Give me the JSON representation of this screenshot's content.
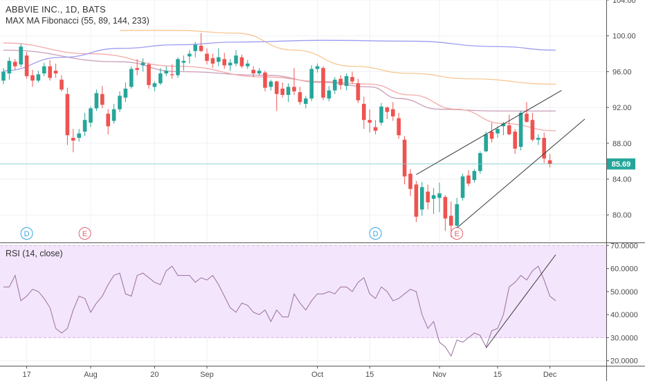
{
  "legend": {
    "symbol_line": "ABBVIE INC., 1D, BATS",
    "ma_line": "MAX MA Fibonacci (55, 89, 144, 233)",
    "rsi_line": "RSI (14, close)"
  },
  "colors": {
    "up": "#26a69a",
    "down": "#ef5350",
    "ma55": "#c99cb7",
    "ma89": "#f4a8a8",
    "ma144": "#f8c690",
    "ma233": "#9c9cf0",
    "rsi_line": "#9a6fa0",
    "rsi_band": "#f3e5fb",
    "price_tag": "#26a69a",
    "dividend": "#35a6e0",
    "earnings": "#e06272"
  },
  "chart_data": [
    {
      "type": "candlestick",
      "name": "ABBVIE INC. daily",
      "y_ticks": [
        "104.00",
        "100.00",
        "96.00",
        "92.00",
        "88.00",
        "84.00",
        "80.00"
      ],
      "ylim": [
        77,
        104
      ],
      "last_price_label": "85.69",
      "last_price": 85.69,
      "x_ticks": [
        {
          "label": "17",
          "index": 4
        },
        {
          "label": "Aug",
          "index": 15
        },
        {
          "label": "20",
          "index": 26
        },
        {
          "label": "Sep",
          "index": 35
        },
        {
          "label": "Oct",
          "index": 54
        },
        {
          "label": "15",
          "index": 63
        },
        {
          "label": "Nov",
          "index": 75
        },
        {
          "label": "15",
          "index": 85
        },
        {
          "label": "Dec",
          "index": 94
        }
      ],
      "candles": [
        [
          95.0,
          96.4,
          94.6,
          96.0
        ],
        [
          95.8,
          97.6,
          95.1,
          97.2
        ],
        [
          97.1,
          97.4,
          96.2,
          96.6
        ],
        [
          96.8,
          99.1,
          96.5,
          98.8
        ],
        [
          97.8,
          98.2,
          95.2,
          95.5
        ],
        [
          95.6,
          96.2,
          94.3,
          95.0
        ],
        [
          95.0,
          96.1,
          94.8,
          95.7
        ],
        [
          95.8,
          97.0,
          95.5,
          96.6
        ],
        [
          96.6,
          97.3,
          95.0,
          95.3
        ],
        [
          96.1,
          96.9,
          95.3,
          95.8
        ],
        [
          95.1,
          95.6,
          93.8,
          94.0
        ],
        [
          93.5,
          94.2,
          87.8,
          88.9
        ],
        [
          88.6,
          89.6,
          87.0,
          88.3
        ],
        [
          88.6,
          89.6,
          88.2,
          89.1
        ],
        [
          89.3,
          91.4,
          88.8,
          90.6
        ],
        [
          90.3,
          92.1,
          89.8,
          91.9
        ],
        [
          91.9,
          94.0,
          91.6,
          93.6
        ],
        [
          93.5,
          94.4,
          91.9,
          92.3
        ],
        [
          91.3,
          91.8,
          89.0,
          89.9
        ],
        [
          90.5,
          92.4,
          90.2,
          91.8
        ],
        [
          91.8,
          93.8,
          91.5,
          93.3
        ],
        [
          93.1,
          94.8,
          92.6,
          94.1
        ],
        [
          94.3,
          96.6,
          94.1,
          96.3
        ],
        [
          96.4,
          97.4,
          95.6,
          96.2
        ],
        [
          96.7,
          97.5,
          96.0,
          97.0
        ],
        [
          96.8,
          97.0,
          94.1,
          94.5
        ],
        [
          94.3,
          94.9,
          93.8,
          94.7
        ],
        [
          94.7,
          96.4,
          94.5,
          95.8
        ],
        [
          95.8,
          96.6,
          95.5,
          96.1
        ],
        [
          95.7,
          96.8,
          95.2,
          95.6
        ],
        [
          95.6,
          97.6,
          95.3,
          97.4
        ],
        [
          97.0,
          97.8,
          96.1,
          97.2
        ],
        [
          97.7,
          98.4,
          96.9,
          98.0
        ],
        [
          98.3,
          99.3,
          97.6,
          99.0
        ],
        [
          98.9,
          100.3,
          98.2,
          98.3
        ],
        [
          98.0,
          98.6,
          96.8,
          97.2
        ],
        [
          97.5,
          98.0,
          96.4,
          96.9
        ],
        [
          97.1,
          98.6,
          96.6,
          97.6
        ],
        [
          97.4,
          98.1,
          96.3,
          96.7
        ],
        [
          96.7,
          97.4,
          96.1,
          97.0
        ],
        [
          96.9,
          98.4,
          96.6,
          97.8
        ],
        [
          97.6,
          97.9,
          96.4,
          96.6
        ],
        [
          96.6,
          97.3,
          96.3,
          96.9
        ],
        [
          96.2,
          96.6,
          95.4,
          95.8
        ],
        [
          95.8,
          96.4,
          95.6,
          96.1
        ],
        [
          95.9,
          96.1,
          93.8,
          94.2
        ],
        [
          94.3,
          95.1,
          93.9,
          94.9
        ],
        [
          94.9,
          95.0,
          91.6,
          93.5
        ],
        [
          94.1,
          94.8,
          93.1,
          93.4
        ],
        [
          93.4,
          94.7,
          92.6,
          94.3
        ],
        [
          94.3,
          96.4,
          93.4,
          93.8
        ],
        [
          93.7,
          94.3,
          92.3,
          92.6
        ],
        [
          92.4,
          93.3,
          91.9,
          93.0
        ],
        [
          93.0,
          96.7,
          92.7,
          96.3
        ],
        [
          96.3,
          96.9,
          95.9,
          96.6
        ],
        [
          96.4,
          96.6,
          92.8,
          93.1
        ],
        [
          93.0,
          94.4,
          92.7,
          93.9
        ],
        [
          93.9,
          95.4,
          93.5,
          95.1
        ],
        [
          95.2,
          95.6,
          94.0,
          94.5
        ],
        [
          94.4,
          95.8,
          93.9,
          95.5
        ],
        [
          95.4,
          96.0,
          94.6,
          94.9
        ],
        [
          94.7,
          95.2,
          92.5,
          92.8
        ],
        [
          92.4,
          93.2,
          89.6,
          90.6
        ],
        [
          90.6,
          91.8,
          89.2,
          90.3
        ],
        [
          89.8,
          90.6,
          89.0,
          89.4
        ],
        [
          90.3,
          92.5,
          90.0,
          92.1
        ],
        [
          92.0,
          92.1,
          90.7,
          91.5
        ],
        [
          91.8,
          92.6,
          90.5,
          91.0
        ],
        [
          90.8,
          91.4,
          88.5,
          88.9
        ],
        [
          88.4,
          88.8,
          83.4,
          84.3
        ],
        [
          84.6,
          85.1,
          82.1,
          82.9
        ],
        [
          83.4,
          83.8,
          79.2,
          79.8
        ],
        [
          80.6,
          83.7,
          79.9,
          83.1
        ],
        [
          82.6,
          83.4,
          80.6,
          81.4
        ],
        [
          81.8,
          83.0,
          80.1,
          82.2
        ],
        [
          81.9,
          83.6,
          80.3,
          82.4
        ],
        [
          82.0,
          82.2,
          78.2,
          79.6
        ],
        [
          79.9,
          81.5,
          77.5,
          78.8
        ],
        [
          78.8,
          81.9,
          78.4,
          81.2
        ],
        [
          81.9,
          84.6,
          81.6,
          84.3
        ],
        [
          84.4,
          85.0,
          83.2,
          83.5
        ],
        [
          83.9,
          85.1,
          83.6,
          84.9
        ],
        [
          84.9,
          87.1,
          84.6,
          86.9
        ],
        [
          87.1,
          89.3,
          87.0,
          89.0
        ],
        [
          89.3,
          90.3,
          88.1,
          88.5
        ],
        [
          89.1,
          89.9,
          88.6,
          89.6
        ],
        [
          89.9,
          90.4,
          88.9,
          90.2
        ],
        [
          90.0,
          91.2,
          88.9,
          89.0
        ],
        [
          89.3,
          89.6,
          86.8,
          87.4
        ],
        [
          87.6,
          91.6,
          87.2,
          91.4
        ],
        [
          91.3,
          92.6,
          90.3,
          90.4
        ],
        [
          90.6,
          91.4,
          88.2,
          88.4
        ],
        [
          88.4,
          89.0,
          87.8,
          88.6
        ],
        [
          88.6,
          89.2,
          85.8,
          86.3
        ],
        [
          86.1,
          86.8,
          85.3,
          85.69
        ]
      ],
      "moving_averages": [
        {
          "period": 55,
          "points": [
            [
              0,
              98.4
            ],
            [
              20,
              97.1
            ],
            [
              30,
              96.0
            ],
            [
              45,
              95.6
            ],
            [
              55,
              94.8
            ],
            [
              63,
              94.3
            ],
            [
              68,
              93.0
            ],
            [
              75,
              91.8
            ],
            [
              85,
              91.6
            ],
            [
              95,
              91.6
            ]
          ]
        },
        {
          "period": 89,
          "points": [
            [
              0,
              99.2
            ],
            [
              15,
              98.0
            ],
            [
              30,
              96.6
            ],
            [
              45,
              95.4
            ],
            [
              55,
              94.9
            ],
            [
              63,
              94.6
            ],
            [
              70,
              93.4
            ],
            [
              78,
              91.8
            ],
            [
              86,
              90.2
            ],
            [
              95,
              89.4
            ]
          ]
        },
        {
          "period": 144,
          "points": [
            [
              20,
              100.6
            ],
            [
              30,
              100.6
            ],
            [
              40,
              100.3
            ],
            [
              50,
              98.4
            ],
            [
              60,
              96.6
            ],
            [
              70,
              95.8
            ],
            [
              80,
              95.2
            ],
            [
              95,
              94.6
            ]
          ]
        },
        {
          "period": 233,
          "points": [
            [
              0,
              96.1
            ],
            [
              10,
              97.6
            ],
            [
              20,
              98.6
            ],
            [
              30,
              99.0
            ],
            [
              40,
              99.3
            ],
            [
              55,
              99.5
            ],
            [
              70,
              99.4
            ],
            [
              85,
              98.8
            ],
            [
              95,
              98.4
            ]
          ]
        }
      ],
      "trendlines": [
        {
          "from": [
            71,
            84.5
          ],
          "to": [
            96,
            93.9
          ]
        },
        {
          "from": [
            77,
            78.0
          ],
          "to": [
            100,
            90.7
          ]
        }
      ],
      "event_markers": [
        {
          "label": "D",
          "kind": "dividend",
          "index": 4
        },
        {
          "label": "E",
          "kind": "earnings",
          "index": 14
        },
        {
          "label": "D",
          "kind": "dividend",
          "index": 64
        },
        {
          "label": "E",
          "kind": "earnings",
          "index": 78
        }
      ]
    },
    {
      "type": "line",
      "name": "RSI (14, close)",
      "y_ticks": [
        "70.0000",
        "60.0000",
        "50.0000",
        "40.0000",
        "30.0000",
        "20.0000"
      ],
      "ylim": [
        19,
        71
      ],
      "band": [
        30,
        70
      ],
      "x": [
        0,
        1,
        2,
        3,
        4,
        5,
        6,
        7,
        8,
        9,
        10,
        11,
        12,
        13,
        14,
        15,
        16,
        17,
        18,
        19,
        20,
        21,
        22,
        23,
        24,
        25,
        26,
        27,
        28,
        29,
        30,
        31,
        32,
        33,
        34,
        35,
        36,
        37,
        38,
        39,
        40,
        41,
        42,
        43,
        44,
        45,
        46,
        47,
        48,
        49,
        50,
        51,
        52,
        53,
        54,
        55,
        56,
        57,
        58,
        59,
        60,
        61,
        62,
        63,
        64,
        65,
        66,
        67,
        68,
        69,
        70,
        71,
        72,
        73,
        74,
        75,
        76,
        77,
        78,
        79,
        80,
        81,
        82,
        83,
        84,
        85,
        86,
        87,
        88,
        89,
        90,
        91,
        92,
        93,
        94,
        95
      ],
      "values": [
        52,
        52,
        57,
        46,
        48,
        51,
        50,
        47,
        43,
        34,
        32,
        34,
        42,
        48,
        47,
        41,
        45,
        48,
        53,
        57,
        58,
        49,
        48,
        57,
        58,
        56,
        54,
        53,
        59,
        61,
        57,
        57,
        57,
        54,
        56,
        55,
        57,
        53,
        48,
        43,
        41,
        45,
        44,
        41,
        40,
        42,
        37,
        42,
        39,
        39,
        49,
        45,
        42,
        46,
        49,
        49,
        50,
        49,
        52,
        52,
        50,
        54,
        56,
        49,
        47,
        52,
        50,
        46,
        47,
        49,
        51,
        50,
        40,
        34,
        37,
        28,
        26,
        22,
        29,
        28,
        30,
        32,
        31,
        26,
        33,
        34,
        40,
        52,
        54,
        57,
        55,
        59,
        61,
        55,
        48,
        46
      ],
      "trendline": {
        "from": [
          83,
          25.5
        ],
        "to": [
          95,
          66
        ]
      }
    }
  ]
}
